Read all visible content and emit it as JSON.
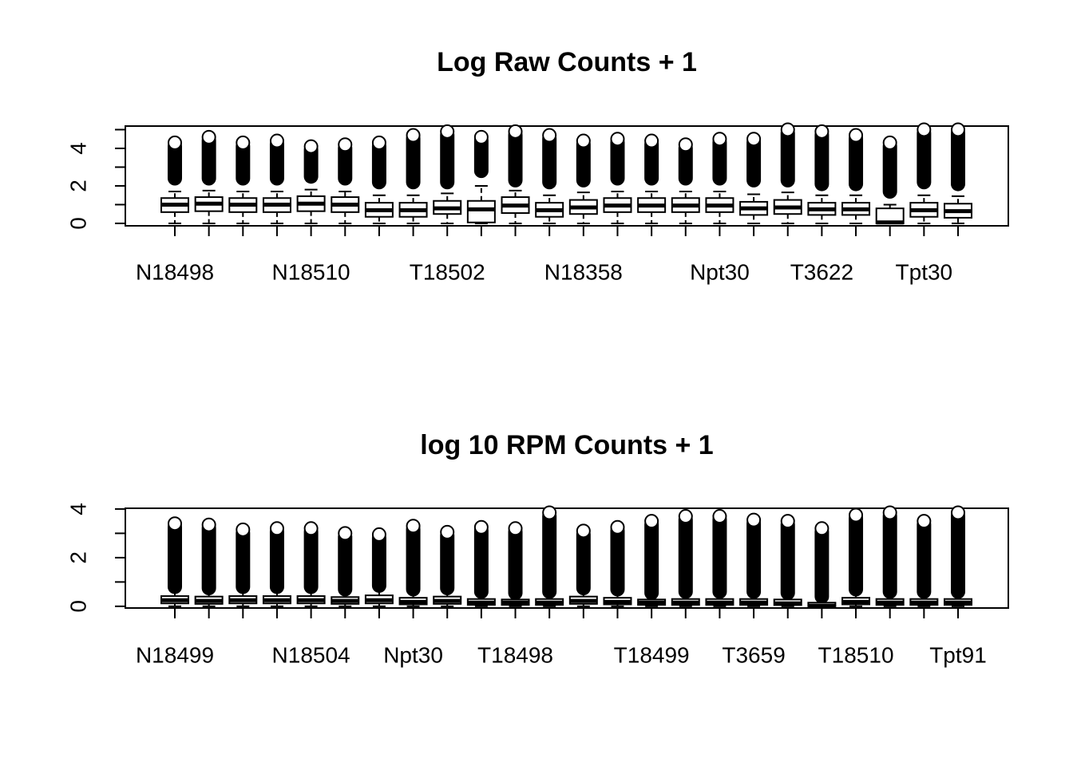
{
  "chart_data": [
    {
      "type": "box",
      "title": "Log Raw Counts + 1",
      "categories": [
        "N18498",
        null,
        null,
        null,
        "N18510",
        null,
        null,
        null,
        "T18502",
        null,
        null,
        null,
        "N18358",
        null,
        null,
        null,
        "Npt30",
        null,
        null,
        "T3622",
        null,
        null,
        "Tpt30",
        null
      ],
      "low": [
        0,
        0,
        0,
        0,
        0,
        0,
        0,
        0,
        0,
        0,
        0,
        0,
        0,
        0,
        0,
        0,
        0,
        0,
        0,
        0,
        0,
        0,
        0,
        0
      ],
      "q1": [
        0.6,
        0.65,
        0.6,
        0.6,
        0.65,
        0.6,
        0.35,
        0.35,
        0.5,
        0.05,
        0.55,
        0.35,
        0.5,
        0.6,
        0.6,
        0.6,
        0.6,
        0.45,
        0.5,
        0.45,
        0.45,
        0,
        0.35,
        0.3
      ],
      "median": [
        1.0,
        1.05,
        1.0,
        1.0,
        1.05,
        1.0,
        0.7,
        0.7,
        0.8,
        0.75,
        0.95,
        0.7,
        0.85,
        0.95,
        0.95,
        0.95,
        0.95,
        0.8,
        0.85,
        0.75,
        0.75,
        0.05,
        0.7,
        0.65
      ],
      "q3": [
        1.35,
        1.4,
        1.35,
        1.35,
        1.45,
        1.4,
        1.1,
        1.1,
        1.2,
        1.2,
        1.4,
        1.1,
        1.25,
        1.35,
        1.35,
        1.35,
        1.35,
        1.15,
        1.25,
        1.1,
        1.1,
        0.8,
        1.1,
        1.05
      ],
      "high": [
        1.7,
        1.75,
        1.7,
        1.7,
        1.8,
        1.7,
        1.5,
        1.5,
        1.6,
        2.0,
        1.75,
        1.5,
        1.65,
        1.7,
        1.7,
        1.7,
        1.7,
        1.55,
        1.65,
        1.5,
        1.5,
        1.0,
        1.5,
        1.45
      ],
      "outlier_low": [
        2.4,
        2.4,
        2.4,
        2.4,
        2.5,
        2.4,
        2.2,
        2.2,
        2.2,
        2.8,
        2.3,
        2.2,
        2.3,
        2.4,
        2.4,
        2.4,
        2.4,
        2.3,
        2.3,
        2.1,
        2.1,
        1.7,
        2.2,
        2.1
      ],
      "outlier_high": [
        4.3,
        4.6,
        4.3,
        4.4,
        4.1,
        4.2,
        4.3,
        4.7,
        4.9,
        4.6,
        4.9,
        4.7,
        4.4,
        4.5,
        4.4,
        4.2,
        4.5,
        4.5,
        5.0,
        4.9,
        4.7,
        4.3,
        5.0,
        5.0
      ],
      "color": "#000000",
      "ylim": [
        -0.13,
        5.19
      ],
      "yticks": [
        0,
        2,
        4
      ],
      "yminor_ticks": [
        1,
        3,
        5
      ]
    },
    {
      "type": "box",
      "title": "log 10 RPM Counts + 1",
      "categories": [
        "N18499",
        null,
        null,
        null,
        "N18504",
        null,
        null,
        "Npt30",
        null,
        null,
        "T18498",
        null,
        null,
        null,
        "T18499",
        null,
        null,
        "T3659",
        null,
        null,
        "T18510",
        null,
        null,
        "Tpt91"
      ],
      "low": [
        0,
        0,
        0,
        0,
        0,
        0,
        0,
        0,
        0,
        0,
        0,
        0,
        0,
        0,
        0,
        0,
        0,
        0,
        0,
        0,
        0,
        0,
        0,
        0
      ],
      "q1": [
        0.12,
        0.1,
        0.12,
        0.12,
        0.12,
        0.1,
        0.12,
        0.08,
        0.1,
        0.06,
        0.06,
        0.06,
        0.1,
        0.08,
        0.06,
        0.06,
        0.06,
        0.06,
        0.05,
        0,
        0.08,
        0.06,
        0.06,
        0.06
      ],
      "median": [
        0.25,
        0.22,
        0.25,
        0.25,
        0.25,
        0.22,
        0.25,
        0.18,
        0.22,
        0.15,
        0.15,
        0.15,
        0.22,
        0.18,
        0.15,
        0.15,
        0.15,
        0.15,
        0.12,
        0.02,
        0.18,
        0.15,
        0.15,
        0.15
      ],
      "q3": [
        0.42,
        0.4,
        0.42,
        0.42,
        0.42,
        0.38,
        0.45,
        0.35,
        0.4,
        0.3,
        0.28,
        0.3,
        0.4,
        0.35,
        0.28,
        0.3,
        0.3,
        0.3,
        0.28,
        0.15,
        0.35,
        0.3,
        0.3,
        0.3
      ],
      "high": [
        0.7,
        0.65,
        0.7,
        0.7,
        0.7,
        0.62,
        0.75,
        0.6,
        0.65,
        0.5,
        0.45,
        0.5,
        0.65,
        0.6,
        0.45,
        0.5,
        0.5,
        0.5,
        0.45,
        0.3,
        0.6,
        0.5,
        0.5,
        0.5
      ],
      "outlier_low": [
        0.8,
        0.75,
        0.8,
        0.8,
        0.8,
        0.7,
        0.85,
        0.7,
        0.75,
        0.6,
        0.55,
        0.6,
        0.75,
        0.7,
        0.55,
        0.6,
        0.6,
        0.6,
        0.55,
        0.4,
        0.7,
        0.6,
        0.6,
        0.6
      ],
      "outlier_high": [
        3.4,
        3.35,
        3.15,
        3.2,
        3.2,
        3.0,
        2.95,
        3.3,
        3.05,
        3.25,
        3.2,
        3.85,
        3.1,
        3.25,
        3.5,
        3.7,
        3.7,
        3.55,
        3.5,
        3.2,
        3.75,
        3.85,
        3.5,
        3.85
      ],
      "color": "#000000",
      "ylim": [
        -0.07,
        4.03
      ],
      "yticks": [
        0,
        2,
        4
      ],
      "yminor_ticks": [
        1,
        3
      ]
    }
  ]
}
